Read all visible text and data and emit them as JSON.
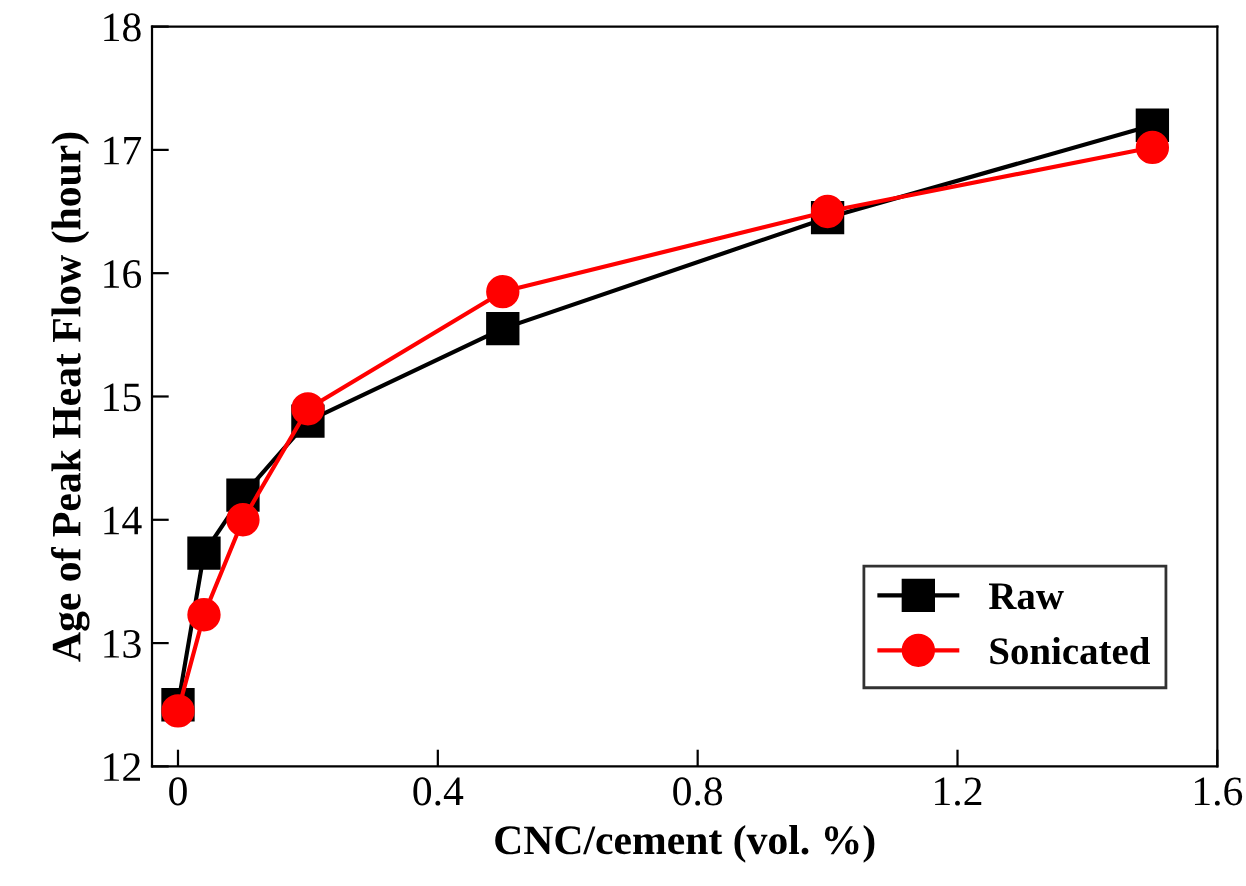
{
  "chart_data": {
    "type": "line",
    "xlabel": "CNC/cement (vol. %)",
    "ylabel": "Age of Peak Heat Flow (hour)",
    "xlim": [
      -0.04,
      1.6
    ],
    "xticks": [
      0,
      0.4,
      0.8,
      1.2,
      1.6
    ],
    "ylim": [
      12,
      18
    ],
    "yticks": [
      12,
      13,
      14,
      15,
      16,
      17,
      18
    ],
    "grid": false,
    "legend": "bottom right",
    "line_style": "solid",
    "series": [
      {
        "name": "Raw",
        "color": "#000000",
        "marker": "square",
        "x": [
          0,
          0.04,
          0.1,
          0.2,
          0.5,
          1.0,
          1.5
        ],
        "values": [
          12.5,
          13.73,
          14.2,
          14.8,
          15.55,
          16.45,
          17.2
        ]
      },
      {
        "name": "Sonicated",
        "color": "#ff0000",
        "marker": "circle",
        "x": [
          0,
          0.04,
          0.1,
          0.2,
          0.5,
          1.0,
          1.5
        ],
        "values": [
          12.45,
          13.23,
          14.0,
          14.9,
          15.85,
          16.5,
          17.02
        ]
      }
    ]
  }
}
